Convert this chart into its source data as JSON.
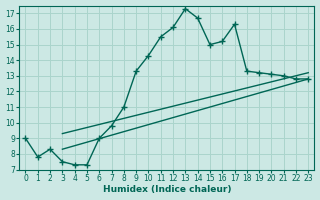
{
  "xlabel": "Humidex (Indice chaleur)",
  "background_color": "#cce8e4",
  "grid_color": "#aad4cc",
  "line_color": "#006655",
  "xlim": [
    -0.5,
    23.5
  ],
  "ylim": [
    7,
    17.5
  ],
  "xticks": [
    0,
    1,
    2,
    3,
    4,
    5,
    6,
    7,
    8,
    9,
    10,
    11,
    12,
    13,
    14,
    15,
    16,
    17,
    18,
    19,
    20,
    21,
    22,
    23
  ],
  "yticks": [
    7,
    8,
    9,
    10,
    11,
    12,
    13,
    14,
    15,
    16,
    17
  ],
  "main_x": [
    0,
    1,
    2,
    3,
    4,
    5,
    6,
    7,
    8,
    9,
    10,
    11,
    12,
    13,
    14,
    15,
    16,
    17,
    18,
    19,
    20,
    21,
    22,
    23
  ],
  "main_y": [
    9.0,
    7.8,
    8.3,
    7.5,
    7.3,
    7.3,
    9.0,
    9.8,
    11.0,
    13.3,
    14.3,
    15.5,
    16.1,
    17.3,
    16.7,
    15.0,
    15.2,
    16.3,
    13.3,
    13.2,
    13.1,
    13.0,
    12.8,
    12.8
  ],
  "line2_x": [
    3,
    23
  ],
  "line2_y": [
    8.3,
    12.8
  ],
  "line3_x": [
    3,
    23
  ],
  "line3_y": [
    9.3,
    13.2
  ],
  "marker_size": 3.5,
  "line_width": 1.0
}
